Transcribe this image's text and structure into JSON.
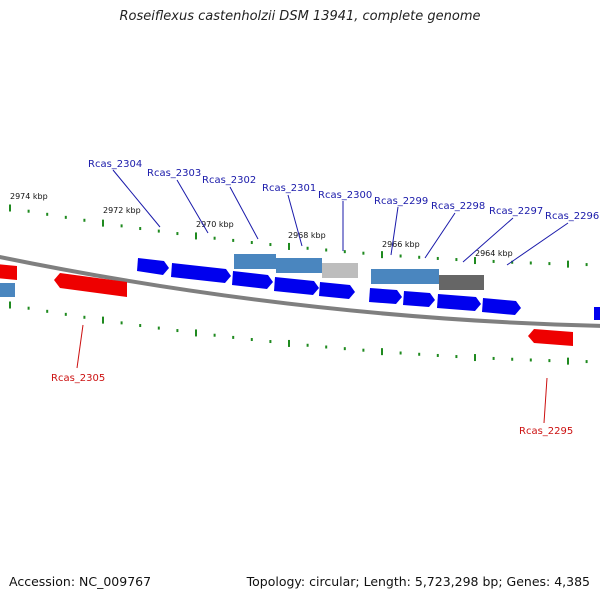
{
  "title": "Roseiflexus castenholzii DSM 13941, complete genome",
  "footer": {
    "accession": "Accession: NC_009767",
    "topology": "Topology: circular; Length: 5,723,298 bp; Genes: 4,385"
  },
  "colors": {
    "backbone": "#7f7f7f",
    "forward_cds": "#0000ee",
    "reverse_cds": "#ee0000",
    "feature_blue": "#4a86bf",
    "feature_light": "#bdbdbd",
    "feature_dark": "#666666",
    "tick": "#1f8a1f",
    "label_forward": "#1a1aaa",
    "label_reverse": "#cc1111"
  },
  "position_labels": [
    "2974 kbp",
    "2972 kbp",
    "2970 kbp",
    "2968 kbp",
    "2966 kbp",
    "2964 kbp"
  ],
  "forward_genes": [
    "Rcas_2304",
    "Rcas_2303",
    "Rcas_2302",
    "Rcas_2301",
    "Rcas_2300",
    "Rcas_2299",
    "Rcas_2298",
    "Rcas_2297",
    "Rcas_2296"
  ],
  "reverse_genes": [
    "Rcas_2305",
    "Rcas_2295"
  ]
}
